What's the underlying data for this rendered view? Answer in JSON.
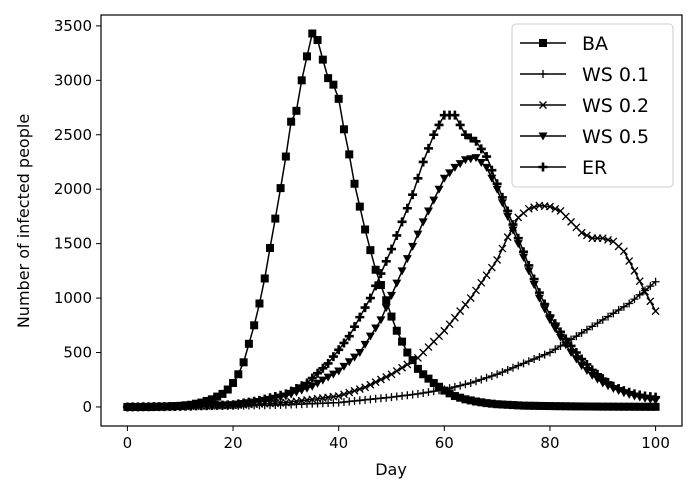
{
  "chart_data": {
    "type": "line",
    "title": "",
    "xlabel": "Day",
    "ylabel": "Number of infected people",
    "xlim": [
      -5,
      105
    ],
    "ylim": [
      -175,
      3600
    ],
    "xticks": [
      0,
      20,
      40,
      60,
      80,
      100
    ],
    "yticks": [
      0,
      500,
      1000,
      1500,
      2000,
      2500,
      3000,
      3500
    ],
    "grid": false,
    "legend_position": "top-right",
    "color": "#000000",
    "series": [
      {
        "name": "BA",
        "marker": "square",
        "x": [
          0,
          2,
          4,
          6,
          8,
          10,
          12,
          14,
          16,
          18,
          19,
          20,
          21,
          22,
          23,
          24,
          25,
          26,
          27,
          28,
          29,
          30,
          31,
          32,
          33,
          34,
          35,
          36,
          37,
          38,
          39,
          40,
          41,
          42,
          43,
          44,
          45,
          46,
          47,
          48,
          49,
          50,
          51,
          52,
          53,
          54,
          55,
          56,
          57,
          58,
          60,
          62,
          64,
          66,
          68,
          70,
          75,
          80,
          85,
          90,
          95,
          100
        ],
        "y": [
          0,
          0,
          0,
          2,
          5,
          10,
          20,
          40,
          70,
          120,
          160,
          220,
          300,
          410,
          580,
          750,
          950,
          1180,
          1460,
          1730,
          2010,
          2300,
          2620,
          2720,
          3000,
          3220,
          3430,
          3370,
          3190,
          3020,
          2960,
          2830,
          2550,
          2320,
          2050,
          1840,
          1630,
          1440,
          1260,
          1120,
          980,
          830,
          700,
          600,
          500,
          430,
          350,
          300,
          260,
          220,
          150,
          100,
          70,
          50,
          35,
          25,
          12,
          8,
          5,
          3,
          2,
          1
        ]
      },
      {
        "name": "WS 0.1",
        "marker": "plus",
        "x": [
          0,
          10,
          20,
          30,
          40,
          50,
          55,
          60,
          65,
          70,
          75,
          80,
          85,
          90,
          95,
          100
        ],
        "y": [
          0,
          5,
          10,
          20,
          40,
          90,
          120,
          160,
          220,
          300,
          400,
          500,
          650,
          800,
          950,
          1150
        ]
      },
      {
        "name": "WS 0.2",
        "marker": "x",
        "x": [
          0,
          10,
          20,
          30,
          40,
          45,
          50,
          55,
          60,
          65,
          70,
          72,
          74,
          76,
          78,
          80,
          82,
          84,
          86,
          88,
          90,
          92,
          94,
          96,
          98,
          100
        ],
        "y": [
          0,
          5,
          15,
          40,
          100,
          180,
          300,
          450,
          700,
          1000,
          1350,
          1560,
          1740,
          1820,
          1850,
          1840,
          1800,
          1700,
          1600,
          1550,
          1550,
          1520,
          1430,
          1250,
          1060,
          880
        ]
      },
      {
        "name": "WS 0.5",
        "marker": "triangle-down",
        "x": [
          0,
          10,
          20,
          25,
          30,
          35,
          40,
          44,
          48,
          52,
          56,
          60,
          62,
          64,
          66,
          68,
          70,
          72,
          74,
          76,
          78,
          80,
          82,
          84,
          86,
          88,
          90,
          92,
          94,
          96,
          98,
          100
        ],
        "y": [
          0,
          5,
          20,
          50,
          100,
          190,
          330,
          500,
          800,
          1250,
          1700,
          2100,
          2200,
          2270,
          2290,
          2200,
          2000,
          1750,
          1500,
          1250,
          1000,
          800,
          640,
          500,
          380,
          290,
          220,
          170,
          130,
          100,
          80,
          60
        ]
      },
      {
        "name": "ER",
        "marker": "plus-filled",
        "x": [
          0,
          10,
          20,
          25,
          30,
          34,
          38,
          42,
          46,
          50,
          54,
          56,
          58,
          60,
          62,
          64,
          66,
          68,
          70,
          72,
          74,
          76,
          78,
          80,
          82,
          84,
          86,
          88,
          90,
          92,
          94,
          96,
          98,
          100
        ],
        "y": [
          0,
          5,
          20,
          60,
          120,
          220,
          400,
          650,
          1000,
          1450,
          1950,
          2250,
          2500,
          2680,
          2680,
          2500,
          2440,
          2300,
          2050,
          1800,
          1550,
          1300,
          1050,
          840,
          690,
          560,
          440,
          340,
          260,
          190,
          150,
          120,
          100,
          90
        ]
      }
    ]
  }
}
